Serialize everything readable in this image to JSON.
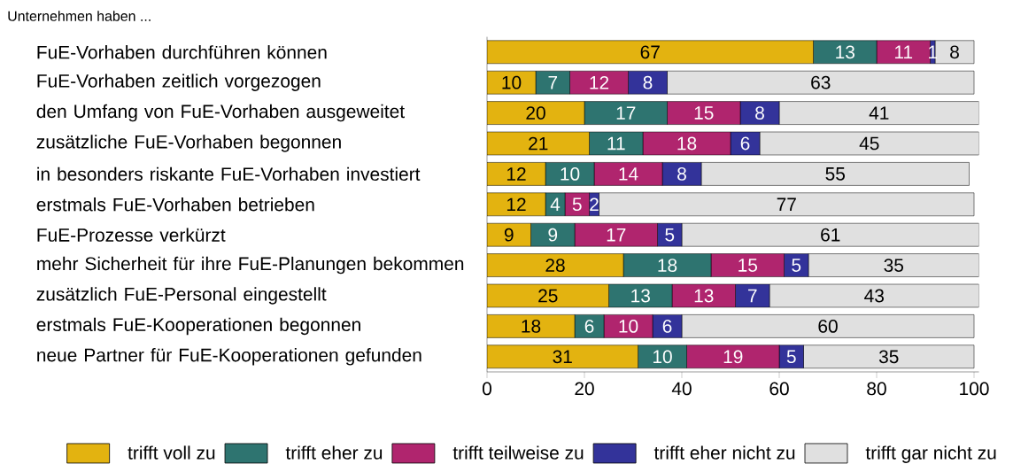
{
  "chart_data": {
    "type": "bar",
    "orientation": "horizontal",
    "stacked": true,
    "data_labels": true,
    "legend": "bottom",
    "title": "Unternehmen haben ...",
    "categories": [
      "FuE-Vorhaben durchführen können",
      "FuE-Vorhaben zeitlich vorgezogen",
      "den Umfang von FuE-Vorhaben ausgeweitet",
      "zusätzliche FuE-Vorhaben begonnen",
      "in besonders riskante FuE-Vorhaben investiert",
      "erstmals FuE-Vorhaben betrieben",
      "FuE-Prozesse verkürzt",
      "mehr Sicherheit für ihre FuE-Planungen bekommen",
      "zusätzlich FuE-Personal eingestellt",
      "erstmals FuE-Kooperationen begonnen",
      "neue Partner für FuE-Kooperationen gefunden"
    ],
    "xlim": [
      0,
      101
    ],
    "xticks": [
      0,
      20,
      40,
      60,
      80,
      100
    ],
    "series": [
      {
        "name": "trifft voll zu",
        "color": "#e3b310",
        "values": [
          67,
          10,
          20,
          21,
          12,
          12,
          9,
          28,
          25,
          18,
          31
        ]
      },
      {
        "name": "trifft eher zu",
        "color": "#2e7470",
        "values": [
          13,
          7,
          17,
          11,
          10,
          4,
          9,
          18,
          13,
          6,
          10
        ]
      },
      {
        "name": "trifft teilweise zu",
        "color": "#b0256e",
        "values": [
          11,
          12,
          15,
          18,
          14,
          5,
          17,
          15,
          13,
          10,
          19
        ]
      },
      {
        "name": "trifft eher nicht zu",
        "color": "#33339a",
        "values": [
          1,
          8,
          8,
          6,
          8,
          2,
          5,
          5,
          7,
          6,
          5
        ]
      },
      {
        "name": "trifft gar nicht zu",
        "color": "#e0e0e0",
        "values": [
          8,
          63,
          41,
          45,
          55,
          77,
          61,
          35,
          43,
          60,
          35
        ]
      }
    ]
  }
}
